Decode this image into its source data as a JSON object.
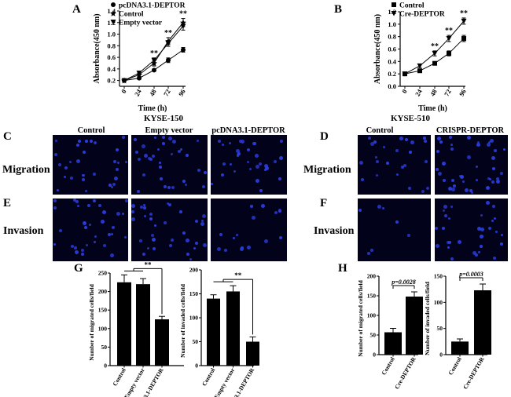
{
  "panel_letters": {
    "A": "A",
    "B": "B",
    "C": "C",
    "D": "D",
    "E": "E",
    "F": "F",
    "G": "G",
    "H": "H"
  },
  "cell_lines": {
    "left": "KYSE-150",
    "right": "KYSE-510"
  },
  "row_labels": {
    "migration": "Migration",
    "invasion": "Invasion"
  },
  "column_headers": {
    "left": [
      "Control",
      "Empty vector",
      "pcDNA3.1-DEPTOR"
    ],
    "right": [
      "Control",
      "CRISPR-DEPTOR"
    ]
  },
  "micrographs": {
    "migration_left": [
      30,
      32,
      31
    ],
    "invasion_left": [
      32,
      33,
      16
    ],
    "migration_right": [
      24,
      40
    ],
    "invasion_right": [
      7,
      30
    ]
  },
  "colors": {
    "bar": "#000000",
    "background": "#ffffff",
    "micro_bg": "#02021a",
    "nuclei": "#2b3de0"
  },
  "chart_data": [
    {
      "id": "A",
      "type": "line",
      "xlabel": "Time (h)",
      "ylabel": "Absorbance(450 nm)",
      "x": [
        0,
        24,
        48,
        72,
        96
      ],
      "xticks": [
        "0",
        "24",
        "48",
        "72",
        "96"
      ],
      "yticks": [
        "0.2",
        "0.4",
        "0.6",
        "0.8",
        "1.0",
        "1.2",
        "1.4"
      ],
      "ylim": [
        0.1,
        1.4
      ],
      "series": [
        {
          "name": "pcDNA3.1-DEPTOR",
          "marker": "circle",
          "values": [
            0.2,
            0.24,
            0.38,
            0.55,
            0.73
          ],
          "err": [
            0.01,
            0.02,
            0.02,
            0.04,
            0.04
          ]
        },
        {
          "name": "Control",
          "marker": "star",
          "values": [
            0.2,
            0.3,
            0.5,
            0.88,
            1.2
          ],
          "err": [
            0.01,
            0.03,
            0.05,
            0.06,
            0.07
          ]
        },
        {
          "name": "Empty vector",
          "marker": "triangle-down",
          "values": [
            0.2,
            0.33,
            0.55,
            0.84,
            1.14
          ],
          "err": [
            0.01,
            0.03,
            0.04,
            0.05,
            0.07
          ]
        }
      ],
      "annotations": [
        {
          "x": 48,
          "text": "**"
        },
        {
          "x": 72,
          "text": "**"
        },
        {
          "x": 96,
          "text": "**"
        }
      ],
      "legend_position": "top-left"
    },
    {
      "id": "B",
      "type": "line",
      "xlabel": "Time (h)",
      "ylabel": "Absorbance(450 nm)",
      "x": [
        0,
        24,
        48,
        72,
        96
      ],
      "xticks": [
        "0",
        "24",
        "48",
        "72",
        "96"
      ],
      "yticks": [
        "0.0",
        "0.2",
        "0.4",
        "0.6",
        "0.8",
        "1.0",
        "1.2"
      ],
      "ylim": [
        0,
        1.2
      ],
      "series": [
        {
          "name": "Control",
          "marker": "square",
          "values": [
            0.2,
            0.25,
            0.37,
            0.53,
            0.77
          ],
          "err": [
            0.01,
            0.02,
            0.02,
            0.04,
            0.05
          ]
        },
        {
          "name": "Cre-DEPTOR",
          "marker": "triangle-down",
          "values": [
            0.2,
            0.33,
            0.53,
            0.77,
            1.05
          ],
          "err": [
            0.01,
            0.03,
            0.04,
            0.05,
            0.05
          ]
        }
      ],
      "annotations": [
        {
          "x": 48,
          "text": "**"
        },
        {
          "x": 72,
          "text": "**"
        },
        {
          "x": 96,
          "text": "**"
        }
      ],
      "legend_position": "top-left"
    },
    {
      "id": "G1",
      "type": "bar",
      "ylabel": "Number of migrated cells/field",
      "categories": [
        "Control",
        "Empty vector",
        "pcDNA3.1-DEPTOR"
      ],
      "values": [
        225,
        220,
        125
      ],
      "err": [
        20,
        15,
        8
      ],
      "yticks": [
        "0",
        "50",
        "100",
        "150",
        "200",
        "250"
      ],
      "ylim": [
        0,
        250
      ],
      "annotations": [
        {
          "text": "**"
        }
      ]
    },
    {
      "id": "G2",
      "type": "bar",
      "ylabel": "Number of invaded cells/field",
      "categories": [
        "Control",
        "Empty vector",
        "pcDNA3.1-DEPTOR"
      ],
      "values": [
        140,
        155,
        50
      ],
      "err": [
        8,
        12,
        10
      ],
      "yticks": [
        "0",
        "50",
        "100",
        "150",
        "200"
      ],
      "ylim": [
        0,
        200
      ],
      "annotations": [
        {
          "text": "**"
        }
      ]
    },
    {
      "id": "H1",
      "type": "bar",
      "ylabel": "Number of migrated cells/field",
      "categories": [
        "Control",
        "Cre-DEPTOR"
      ],
      "values": [
        57,
        148
      ],
      "err": [
        10,
        12
      ],
      "yticks": [
        "0",
        "50",
        "100",
        "150",
        "200"
      ],
      "ylim": [
        0,
        200
      ],
      "annotations": [
        {
          "text": "p=0.0028"
        }
      ]
    },
    {
      "id": "H2",
      "type": "bar",
      "ylabel": "Number of invaded cells/field",
      "categories": [
        "Control",
        "Cre-DEPTOR"
      ],
      "values": [
        25,
        123
      ],
      "err": [
        5,
        12
      ],
      "yticks": [
        "0",
        "50",
        "100",
        "150"
      ],
      "ylim": [
        0,
        150
      ],
      "annotations": [
        {
          "text": "p=0.0003"
        }
      ]
    }
  ]
}
